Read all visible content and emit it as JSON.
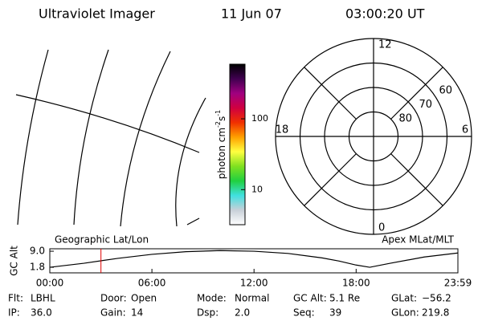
{
  "header": {
    "instrument": "Ultraviolet Imager",
    "date": "11 Jun 07",
    "time": "03:00:20 UT"
  },
  "chart_data": [
    {
      "type": "colorbar",
      "label": [
        "photon cm",
        "-2",
        "s",
        "-1"
      ],
      "log_scale": true,
      "ylim": [
        3.2,
        590
      ],
      "yticks": [
        10,
        100
      ],
      "colors": [
        "#ffffff",
        "#c8d0d8",
        "#40e0e0",
        "#20d040",
        "#80e020",
        "#ffff40",
        "#ffa000",
        "#f03000",
        "#d00040",
        "#a00080",
        "#400050",
        "#000000"
      ]
    },
    {
      "type": "polar",
      "rlim": [
        90,
        50
      ],
      "rticks": [
        80,
        70,
        60
      ],
      "thetaticks": [
        12,
        6,
        0,
        18
      ]
    },
    {
      "type": "line",
      "ylabel": "GC Alt",
      "left_note": "Geographic Lat/Lon",
      "right_note": "Apex MLat/MLT",
      "x": [
        0,
        2,
        4,
        6,
        8,
        10,
        12,
        14,
        16,
        17,
        18,
        18.8,
        20,
        22,
        23.98
      ],
      "values": [
        1.8,
        3.6,
        5.8,
        7.6,
        8.8,
        9.3,
        9.0,
        8.0,
        6.0,
        4.6,
        2.8,
        1.8,
        3.6,
        6.4,
        8.2
      ],
      "color": "#000000",
      "marker_x": 3.006,
      "marker_color": "#e00000",
      "xlim": [
        0,
        23.98
      ],
      "ylim": [
        -0.7,
        10.1
      ],
      "xticks": [
        {
          "value": 0,
          "label": "00:00"
        },
        {
          "value": 6,
          "label": "06:00"
        },
        {
          "value": 12,
          "label": "12:00"
        },
        {
          "value": 18,
          "label": "18:00"
        },
        {
          "value": 23.98,
          "label": "23:59"
        }
      ],
      "yticks": [
        {
          "value": 9.0,
          "label": "9.0"
        },
        {
          "value": 1.8,
          "label": "1.8"
        }
      ]
    }
  ],
  "footer": {
    "rows": [
      [
        [
          "Flt:",
          "LBHL"
        ],
        [
          "Door:",
          "Open"
        ],
        [
          "Mode:",
          "Normal"
        ],
        [
          "GC Alt:",
          "5.1 Re"
        ],
        [
          "GLat:",
          "−56.2"
        ]
      ],
      [
        [
          "IP:",
          "36.0"
        ],
        [
          "Gain:",
          "14"
        ],
        [
          "Dsp:",
          "2.0"
        ],
        [
          "Seq:",
          "39"
        ],
        [
          "GLon:",
          "219.8"
        ]
      ]
    ]
  }
}
